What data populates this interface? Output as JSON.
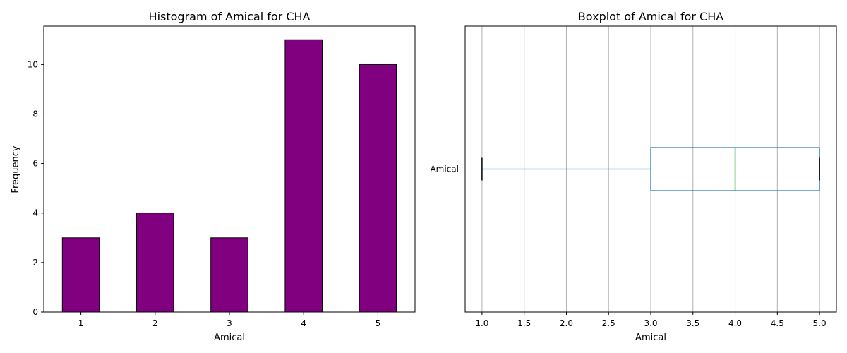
{
  "chart_data": [
    {
      "type": "bar",
      "title": "Histogram of Amical for CHA",
      "xlabel": "Amical",
      "ylabel": "Frequency",
      "categories": [
        "1",
        "2",
        "3",
        "4",
        "5"
      ],
      "values": [
        3,
        4,
        3,
        11,
        10
      ],
      "ylim": [
        0,
        11.55
      ],
      "yticks": [
        0,
        2,
        4,
        6,
        8,
        10
      ],
      "grid": false,
      "colors": {
        "bar_fill": "#800080",
        "bar_edge": "#000000"
      }
    },
    {
      "type": "box",
      "title": "Boxplot of Amical for CHA",
      "xlabel": "Amical",
      "ylabel": "",
      "category": "Amical",
      "orientation": "horizontal",
      "whisker_low": 1.0,
      "q1": 3.0,
      "median": 4.0,
      "q3": 5.0,
      "whisker_high": 5.0,
      "xlim": [
        0.8,
        5.2
      ],
      "xticks": [
        1.0,
        1.5,
        2.0,
        2.5,
        3.0,
        3.5,
        4.0,
        4.5,
        5.0
      ],
      "grid": true,
      "colors": {
        "box": "#1f77b4",
        "median": "#2ca02c",
        "cap": "#000000",
        "grid": "#b0b0b0"
      }
    }
  ]
}
